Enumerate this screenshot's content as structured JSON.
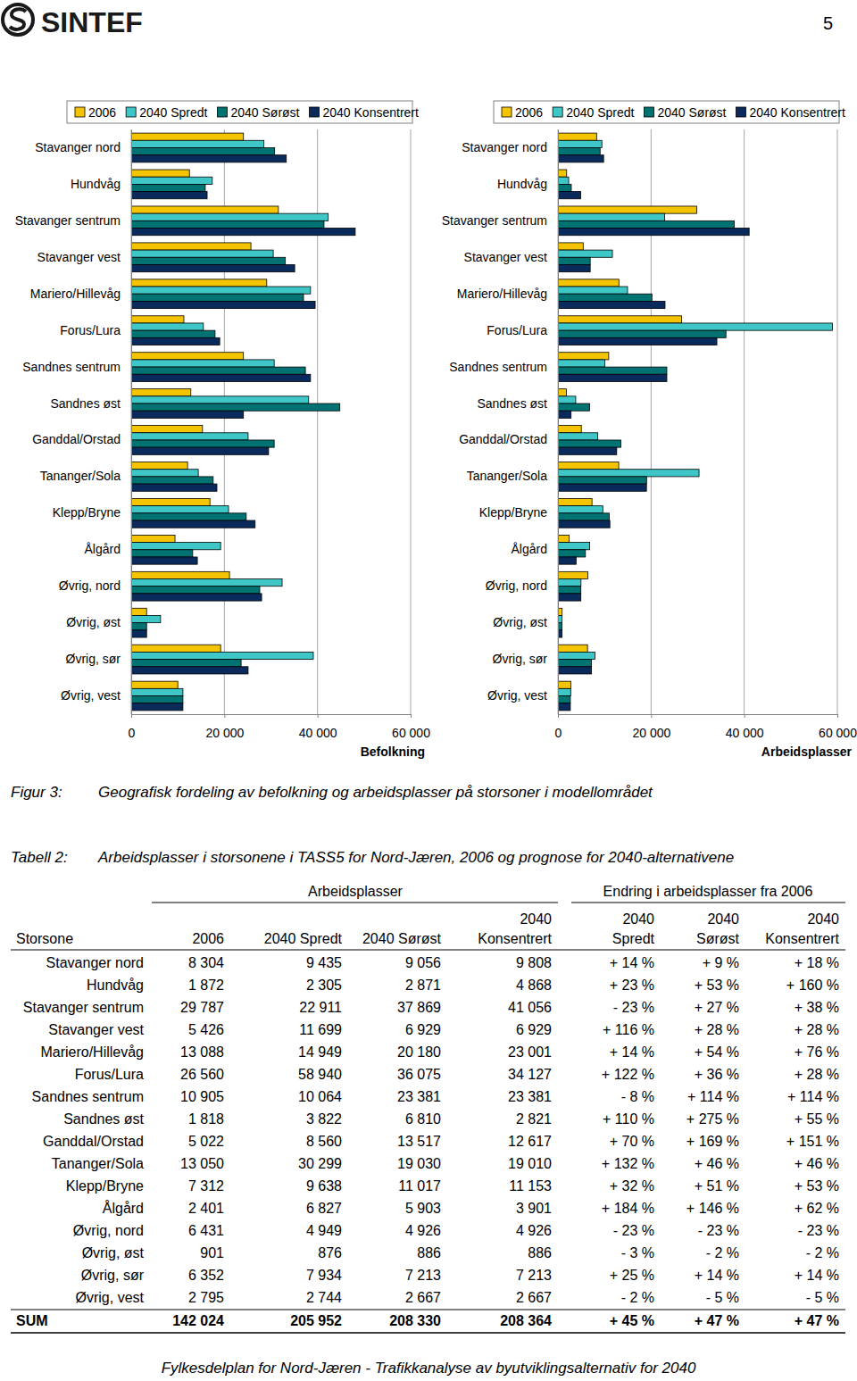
{
  "header": {
    "logo": "SINTEF",
    "page_number": "5"
  },
  "chart_data": [
    {
      "type": "bar",
      "orientation": "horizontal",
      "legend": "top",
      "grid": true,
      "x_label": "Befolkning",
      "categories": [
        "Stavanger nord",
        "Hundvåg",
        "Stavanger sentrum",
        "Stavanger vest",
        "Mariero/Hillevåg",
        "Forus/Lura",
        "Sandnes sentrum",
        "Sandnes øst",
        "Ganddal/Orstad",
        "Tananger/Sola",
        "Klepp/Bryne",
        "Ålgård",
        "Øvrig, nord",
        "Øvrig, øst",
        "Øvrig, sør",
        "Øvrig, vest"
      ],
      "xlim": [
        0,
        60000
      ],
      "xticks": [
        0,
        {
          "value": 20000,
          "label": "20 000"
        },
        {
          "value": 40000,
          "label": "40 000"
        },
        {
          "value": 60000,
          "label": "60 000"
        }
      ],
      "series": [
        {
          "name": "2006",
          "color": "#f5c400",
          "values": [
            24100,
            12500,
            31600,
            25700,
            29100,
            11300,
            24100,
            12800,
            15300,
            12100,
            16900,
            9400,
            21100,
            3300,
            19200,
            10000
          ]
        },
        {
          "name": "2040 Spredt",
          "color": "#3fc6c6",
          "values": [
            28500,
            17400,
            42300,
            30500,
            38500,
            15500,
            30700,
            38100,
            25100,
            14400,
            20900,
            19200,
            32400,
            6300,
            39100,
            11100
          ]
        },
        {
          "name": "2040 Sørøst",
          "color": "#007272",
          "values": [
            30800,
            15900,
            41400,
            33100,
            37000,
            18000,
            37400,
            44800,
            30700,
            17600,
            24700,
            13200,
            27600,
            3300,
            23600,
            11100
          ]
        },
        {
          "name": "2040 Konsentrert",
          "color": "#0b2a5c",
          "values": [
            33300,
            16300,
            48100,
            35100,
            39500,
            19000,
            38500,
            24100,
            29500,
            18400,
            26600,
            14200,
            28000,
            3300,
            25100,
            11100
          ]
        }
      ]
    },
    {
      "type": "bar",
      "orientation": "horizontal",
      "legend": "top",
      "grid": true,
      "x_label": "Arbeidsplasser",
      "categories": [
        "Stavanger nord",
        "Hundvåg",
        "Stavanger sentrum",
        "Stavanger vest",
        "Mariero/Hillevåg",
        "Forus/Lura",
        "Sandnes sentrum",
        "Sandnes øst",
        "Ganddal/Orstad",
        "Tananger/Sola",
        "Klepp/Bryne",
        "Ålgård",
        "Øvrig, nord",
        "Øvrig, øst",
        "Øvrig, sør",
        "Øvrig, vest"
      ],
      "xlim": [
        0,
        60000
      ],
      "xticks": [
        0,
        {
          "value": 20000,
          "label": "20 000"
        },
        {
          "value": 40000,
          "label": "40 000"
        },
        {
          "value": 60000,
          "label": "60 000"
        }
      ],
      "series": [
        {
          "name": "2006",
          "color": "#f5c400",
          "values": [
            8304,
            1872,
            29787,
            5426,
            13088,
            26560,
            10905,
            1818,
            5022,
            13050,
            7312,
            2401,
            6431,
            901,
            6352,
            2795
          ]
        },
        {
          "name": "2040 Spredt",
          "color": "#3fc6c6",
          "values": [
            9435,
            2305,
            22911,
            11699,
            14949,
            58940,
            10064,
            3822,
            8560,
            30299,
            9638,
            6827,
            4949,
            876,
            7934,
            2744
          ]
        },
        {
          "name": "2040 Sørøst",
          "color": "#007272",
          "values": [
            9056,
            2871,
            37869,
            6929,
            20180,
            36075,
            23381,
            6810,
            13517,
            19030,
            11017,
            5903,
            4926,
            886,
            7213,
            2667
          ]
        },
        {
          "name": "2040 Konsentrert",
          "color": "#0b2a5c",
          "values": [
            9808,
            4868,
            41056,
            6929,
            23001,
            34127,
            23381,
            2821,
            12617,
            19010,
            11153,
            3901,
            4926,
            886,
            7213,
            2667
          ]
        }
      ]
    }
  ],
  "figure_caption": {
    "label": "Figur 3:",
    "text": "Geografisk fordeling av befolkning og arbeidsplasser på storsoner i modellområdet"
  },
  "table": {
    "caption_label": "Tabell 2:",
    "caption": "Arbeidsplasser i storsonene i TASS5 for Nord-Jæren, 2006 og prognose for 2040-alternativene",
    "group_headers": [
      "Arbeidsplasser",
      "Endring i arbeidsplasser fra 2006"
    ],
    "columns": [
      [
        "Storsone"
      ],
      [
        "2006"
      ],
      [
        "2040 Spredt"
      ],
      [
        "2040 Sørøst"
      ],
      [
        "2040",
        "Konsentrert"
      ],
      [
        "2040",
        "Spredt"
      ],
      [
        "2040",
        "Sørøst"
      ],
      [
        "2040",
        "Konsentrert"
      ]
    ],
    "rows": [
      [
        "Stavanger nord",
        "8 304",
        "9 435",
        "9 056",
        "9 808",
        "+ 14 %",
        "+ 9 %",
        "+ 18 %"
      ],
      [
        "Hundvåg",
        "1 872",
        "2 305",
        "2 871",
        "4 868",
        "+ 23 %",
        "+ 53 %",
        "+ 160 %"
      ],
      [
        "Stavanger sentrum",
        "29 787",
        "22 911",
        "37 869",
        "41 056",
        "- 23 %",
        "+ 27 %",
        "+ 38 %"
      ],
      [
        "Stavanger vest",
        "5 426",
        "11 699",
        "6 929",
        "6 929",
        "+ 116 %",
        "+ 28 %",
        "+ 28 %"
      ],
      [
        "Mariero/Hillevåg",
        "13 088",
        "14 949",
        "20 180",
        "23 001",
        "+ 14 %",
        "+ 54 %",
        "+ 76 %"
      ],
      [
        "Forus/Lura",
        "26 560",
        "58 940",
        "36 075",
        "34 127",
        "+ 122 %",
        "+ 36 %",
        "+ 28 %"
      ],
      [
        "Sandnes sentrum",
        "10 905",
        "10 064",
        "23 381",
        "23 381",
        "- 8 %",
        "+ 114 %",
        "+ 114 %"
      ],
      [
        "Sandnes øst",
        "1 818",
        "3 822",
        "6 810",
        "2 821",
        "+ 110 %",
        "+ 275 %",
        "+ 55 %"
      ],
      [
        "Ganddal/Orstad",
        "5 022",
        "8 560",
        "13 517",
        "12 617",
        "+ 70 %",
        "+ 169 %",
        "+ 151 %"
      ],
      [
        "Tananger/Sola",
        "13 050",
        "30 299",
        "19 030",
        "19 010",
        "+ 132 %",
        "+ 46 %",
        "+ 46 %"
      ],
      [
        "Klepp/Bryne",
        "7 312",
        "9 638",
        "11 017",
        "11 153",
        "+ 32 %",
        "+ 51 %",
        "+ 53 %"
      ],
      [
        "Ålgård",
        "2 401",
        "6 827",
        "5 903",
        "3 901",
        "+ 184 %",
        "+ 146 %",
        "+ 62 %"
      ],
      [
        "Øvrig, nord",
        "6 431",
        "4 949",
        "4 926",
        "4 926",
        "- 23 %",
        "- 23 %",
        "- 23 %"
      ],
      [
        "Øvrig, øst",
        "901",
        "876",
        "886",
        "886",
        "- 3 %",
        "- 2 %",
        "- 2 %"
      ],
      [
        "Øvrig, sør",
        "6 352",
        "7 934",
        "7 213",
        "7 213",
        "+ 25 %",
        "+ 14 %",
        "+ 14 %"
      ],
      [
        "Øvrig, vest",
        "2 795",
        "2 744",
        "2 667",
        "2 667",
        "- 2 %",
        "- 5 %",
        "- 5 %"
      ]
    ],
    "total_row": [
      "SUM",
      "142 024",
      "205 952",
      "208 330",
      "208 364",
      "+ 45 %",
      "+ 47 %",
      "+ 47 %"
    ]
  },
  "footer": "Fylkesdelplan for Nord-Jæren - Trafikkanalyse av byutviklingsalternativ for 2040"
}
